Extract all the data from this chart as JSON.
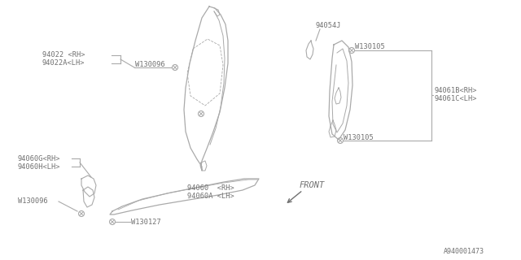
{
  "bg_color": "#ffffff",
  "line_color": "#aaaaaa",
  "text_color": "#707070",
  "title_bottom": "A940001473",
  "labels": {
    "94022_RH": "94022 <RH>",
    "94022A_LH": "94022A<LH>",
    "W130096_top": "W130096",
    "94054J": "94054J",
    "W130105_top": "W130105",
    "W130105_bot": "W130105",
    "94061B_RH": "94061B<RH>",
    "94061C_LH": "94061C<LH>",
    "94060G_RH": "94060G<RH>",
    "94060H_LH": "94060H<LH>",
    "W130096_bot": "W130096",
    "94060_RH": "94060  <RH>",
    "94060A_LH": "94060A <LH>",
    "W130127": "W130127",
    "FRONT": "FRONT"
  }
}
